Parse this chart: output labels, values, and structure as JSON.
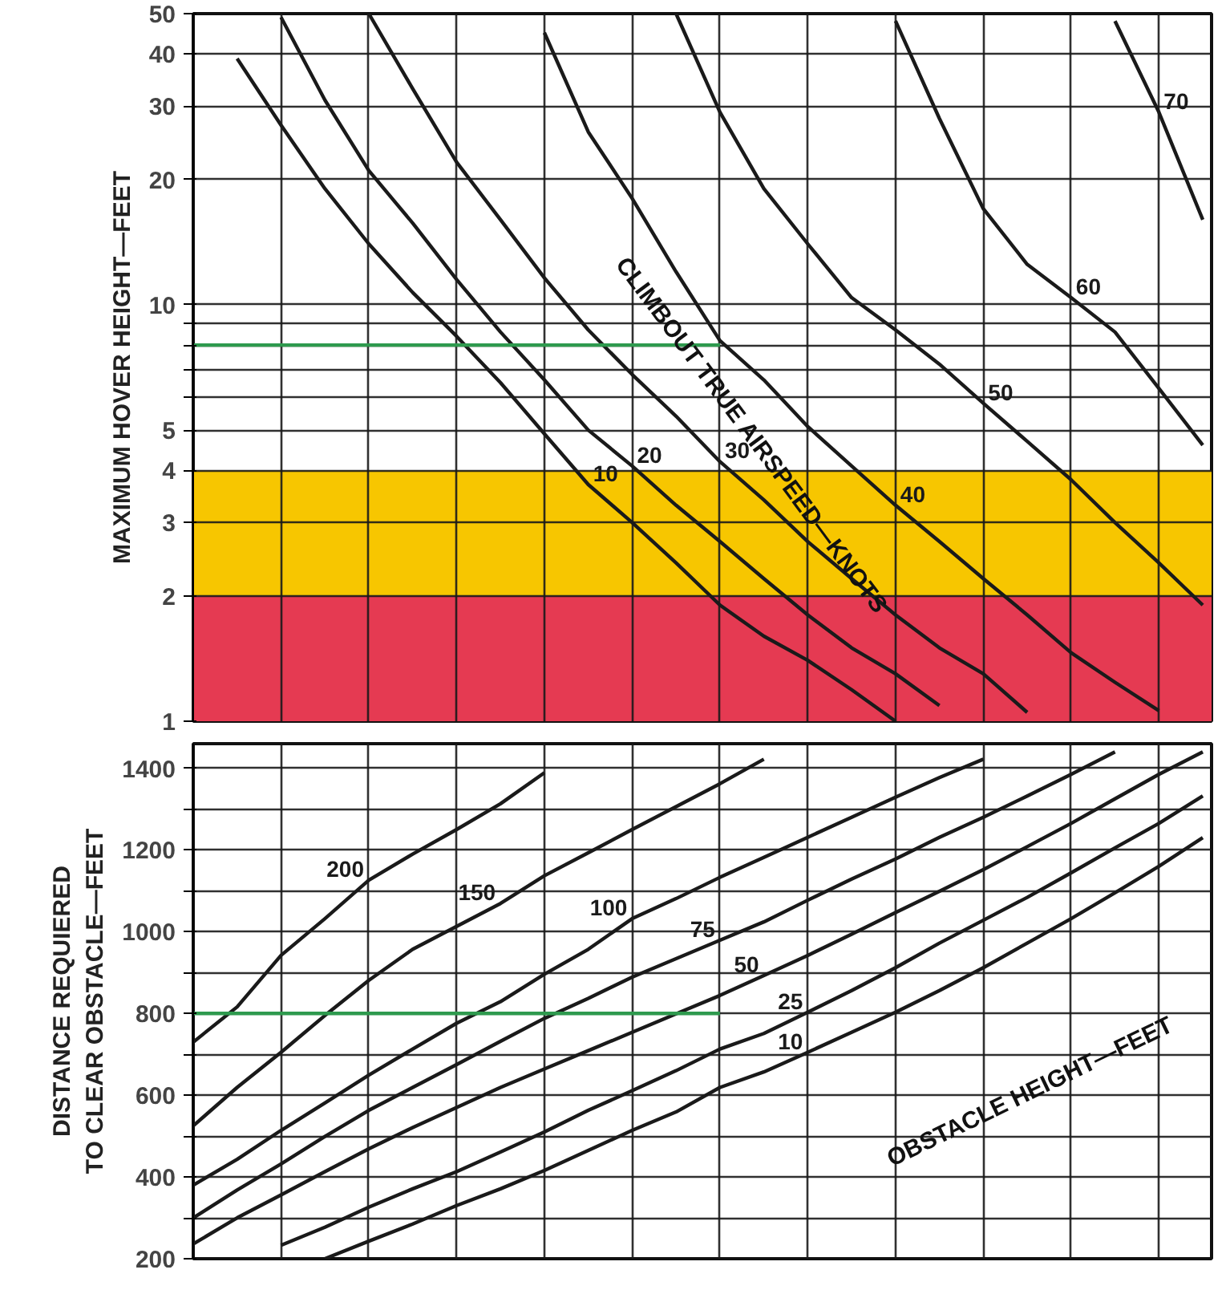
{
  "chart_data": [
    {
      "type": "line",
      "ylabel": "MAXIMUM HOVER HEIGHT—FEET",
      "log": "y",
      "grid": true,
      "tick_labels": "y",
      "ylim": [
        1,
        50
      ],
      "yticks": [
        1,
        2,
        3,
        4,
        5,
        {
          "value": 6,
          "label": null
        },
        {
          "value": 7,
          "label": null
        },
        {
          "value": 8,
          "label": null
        },
        {
          "value": 9,
          "label": null
        },
        10,
        20,
        30,
        40,
        50
      ],
      "categories": [
        null,
        null,
        null,
        null,
        null,
        null,
        null,
        null,
        null,
        null,
        null,
        null,
        null,
        null,
        null,
        null,
        null,
        null,
        null,
        null,
        null,
        null,
        null,
        null
      ],
      "series": [
        {
          "name": "10",
          "color": "#1a1a1a",
          "values": [
            null,
            39,
            27,
            19,
            14,
            10.7,
            8.4,
            6.5,
            4.9,
            3.7,
            3.0,
            2.4,
            1.9,
            1.6,
            1.4,
            1.19,
            1.0,
            null,
            null,
            null,
            null,
            null,
            null,
            null
          ]
        },
        {
          "name": "20",
          "color": "#1a1a1a",
          "values": [
            null,
            null,
            49,
            31,
            21,
            15.7,
            11.5,
            8.6,
            6.6,
            5.0,
            4.1,
            3.3,
            2.7,
            2.2,
            1.8,
            1.5,
            1.3,
            1.09,
            null,
            null,
            null,
            null,
            null,
            null
          ]
        },
        {
          "name": "30",
          "color": "#1a1a1a",
          "values": [
            null,
            null,
            null,
            null,
            50,
            33,
            22,
            16,
            11.6,
            8.7,
            6.8,
            5.4,
            4.2,
            3.4,
            2.7,
            2.2,
            1.8,
            1.5,
            1.3,
            1.05,
            null,
            null,
            null,
            null
          ]
        },
        {
          "name": "40",
          "color": "#1a1a1a",
          "values": [
            null,
            null,
            null,
            null,
            null,
            null,
            null,
            null,
            45,
            26,
            18,
            12,
            8.2,
            6.6,
            5.1,
            4.1,
            3.3,
            2.7,
            2.2,
            1.8,
            1.46,
            1.24,
            1.06,
            null
          ]
        },
        {
          "name": "50",
          "color": "#1a1a1a",
          "values": [
            null,
            null,
            null,
            null,
            null,
            null,
            null,
            null,
            null,
            null,
            null,
            50,
            29,
            19,
            14,
            10.4,
            8.7,
            7.2,
            5.8,
            4.7,
            3.8,
            3.0,
            2.4,
            1.9
          ]
        },
        {
          "name": "60",
          "color": "#1a1a1a",
          "values": [
            null,
            null,
            null,
            null,
            null,
            null,
            null,
            null,
            null,
            null,
            null,
            null,
            null,
            null,
            null,
            null,
            48,
            28,
            17,
            12.5,
            10.4,
            8.6,
            6.3,
            4.6
          ]
        },
        {
          "name": "70",
          "color": "#1a1a1a",
          "values": [
            null,
            null,
            null,
            null,
            null,
            null,
            null,
            null,
            null,
            null,
            null,
            null,
            null,
            null,
            null,
            null,
            null,
            null,
            null,
            null,
            null,
            48,
            29,
            16
          ]
        },
        {
          "color": "#2e9a4e",
          "values": [
            8,
            8,
            8,
            8,
            8,
            8,
            8,
            8,
            8,
            8,
            8,
            8,
            8,
            null,
            null,
            null,
            null,
            null,
            null,
            null,
            null,
            null,
            null,
            null
          ]
        }
      ],
      "bands": [
        {
          "axis": "y",
          "from": 2,
          "to": 4,
          "color": "#f7c600"
        },
        {
          "axis": "y",
          "from": 1,
          "to": 2,
          "color": "#e53a52"
        }
      ],
      "annotations": [
        "CLIMBOUT TRUE AIRSPEED—KNOTS"
      ]
    },
    {
      "type": "line",
      "ylabel": "DISTANCE REQUIERED\nTO CLEAR OBSTACLE—FEET",
      "grid": true,
      "tick_labels": "y",
      "ylim": [
        200,
        1460
      ],
      "yticks": [
        200,
        {
          "value": 300,
          "label": null
        },
        400,
        {
          "value": 500,
          "label": null
        },
        600,
        {
          "value": 700,
          "label": null
        },
        800,
        {
          "value": 900,
          "label": null
        },
        1000,
        {
          "value": 1100,
          "label": null
        },
        1200,
        {
          "value": 1300,
          "label": null
        },
        1400
      ],
      "categories": [
        null,
        null,
        null,
        null,
        null,
        null,
        null,
        null,
        null,
        null,
        null,
        null,
        null,
        null,
        null,
        null,
        null,
        null,
        null,
        null,
        null,
        null,
        null,
        null
      ],
      "series": [
        {
          "name": "200",
          "color": "#1a1a1a",
          "values": [
            730,
            816,
            942,
            1032,
            1126,
            1190,
            1250,
            1313,
            1389,
            null,
            null,
            null,
            null,
            null,
            null,
            null,
            null,
            null,
            null,
            null,
            null,
            null,
            null,
            null
          ]
        },
        {
          "name": "150",
          "color": "#1a1a1a",
          "values": [
            525,
            619,
            705,
            795,
            881,
            957,
            1013,
            1069,
            1137,
            1193,
            1250,
            1306,
            1362,
            1422,
            null,
            null,
            null,
            null,
            null,
            null,
            null,
            null,
            null,
            null
          ]
        },
        {
          "name": "100",
          "color": "#1a1a1a",
          "values": [
            380,
            443,
            514,
            581,
            649,
            713,
            776,
            829,
            896,
            957,
            1032,
            1081,
            1133,
            1182,
            1231,
            1280,
            1329,
            1377,
            1422,
            null,
            null,
            null,
            null,
            null
          ]
        },
        {
          "name": "75",
          "color": "#1a1a1a",
          "values": [
            300,
            368,
            432,
            499,
            563,
            619,
            675,
            732,
            788,
            837,
            889,
            934,
            979,
            1024,
            1077,
            1129,
            1178,
            1231,
            1280,
            1332,
            1385,
            1440,
            null,
            null
          ]
        },
        {
          "name": "50",
          "color": "#1a1a1a",
          "values": [
            236,
            300,
            356,
            413,
            469,
            521,
            570,
            619,
            664,
            709,
            754,
            799,
            844,
            893,
            942,
            994,
            1047,
            1099,
            1152,
            1208,
            1265,
            1325,
            1385,
            1440
          ]
        },
        {
          "name": "25",
          "color": "#1a1a1a",
          "values": [
            null,
            null,
            233,
            277,
            326,
            371,
            413,
            461,
            510,
            563,
            611,
            660,
            713,
            751,
            803,
            856,
            912,
            972,
            1028,
            1084,
            1144,
            1205,
            1265,
            1332
          ]
        },
        {
          "name": "10",
          "color": "#1a1a1a",
          "values": [
            null,
            null,
            null,
            200,
            243,
            285,
            330,
            371,
            416,
            465,
            514,
            559,
            619,
            657,
            705,
            754,
            803,
            856,
            912,
            972,
            1032,
            1095,
            1160,
            1230
          ]
        },
        {
          "color": "#2e9a4e",
          "values": [
            800,
            800,
            800,
            800,
            800,
            800,
            800,
            800,
            800,
            800,
            800,
            800,
            800,
            null,
            null,
            null,
            null,
            null,
            null,
            null,
            null,
            null,
            null,
            null
          ]
        }
      ],
      "annotations": [
        "OBSTACLE HEIGHT—FEET"
      ]
    }
  ]
}
